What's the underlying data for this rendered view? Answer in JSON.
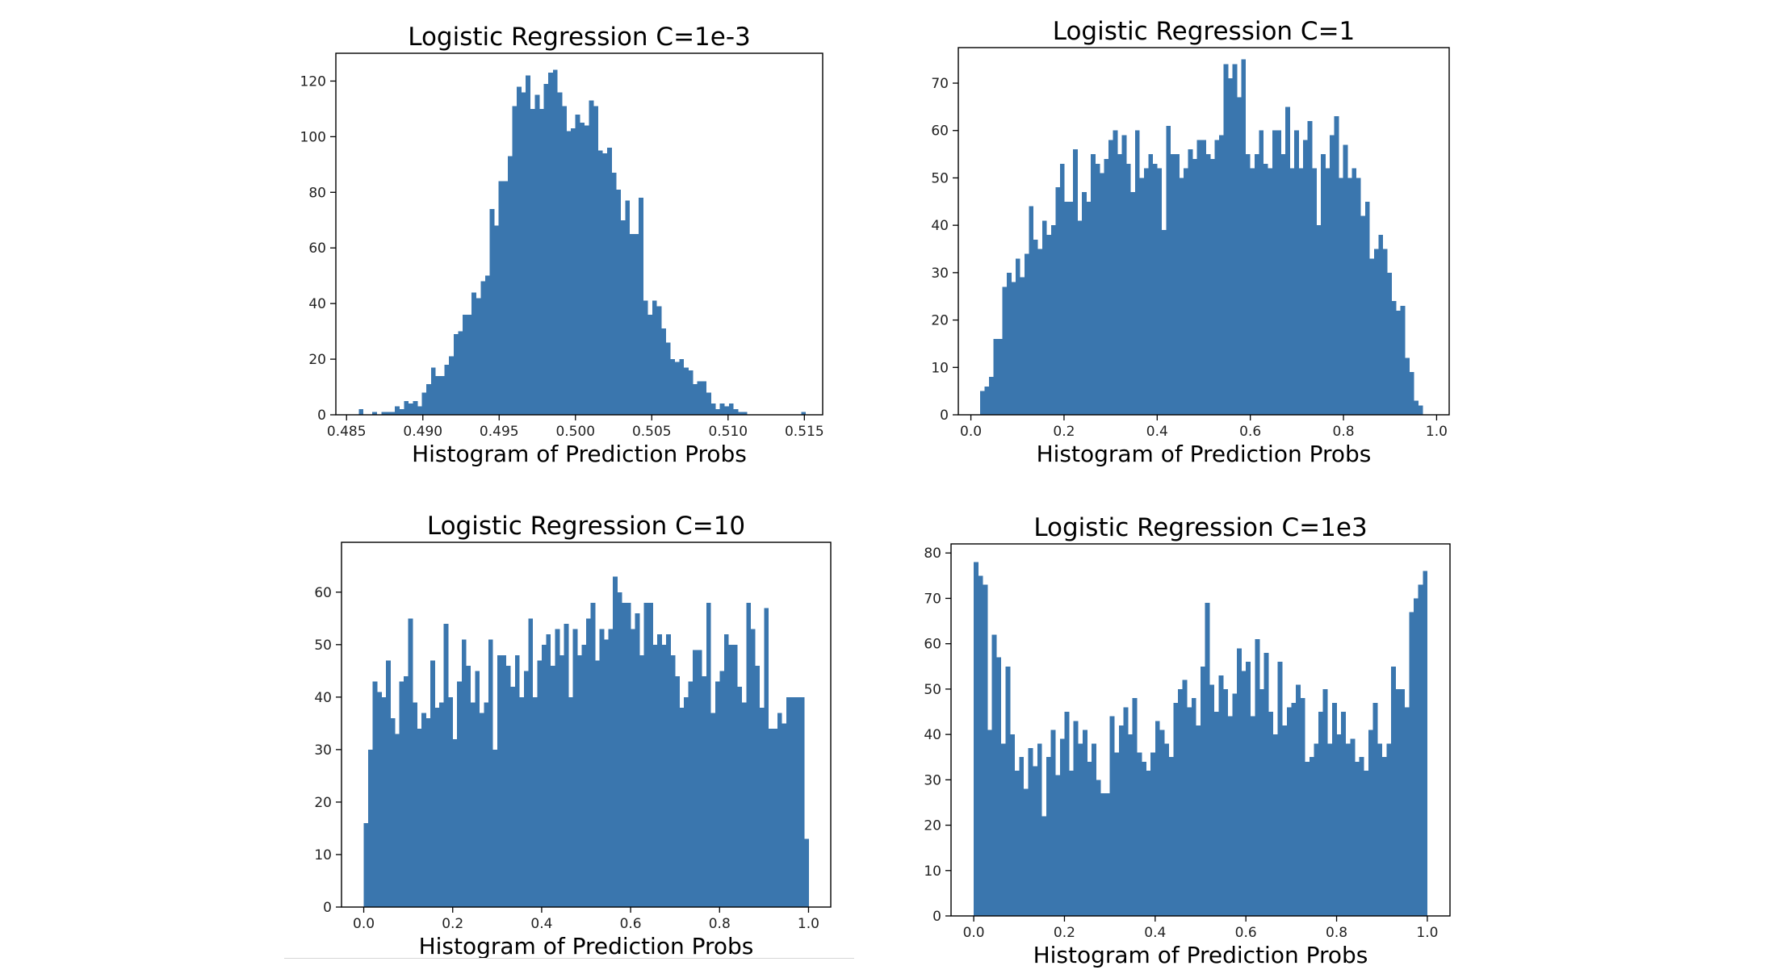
{
  "chart_data": [
    {
      "type": "bar",
      "title": "Logistic Regression C=1e-3",
      "xlabel": "Histogram of Prediction Probs",
      "ylabel": "",
      "xlim": [
        0.4843,
        0.5162
      ],
      "ylim": [
        0,
        130
      ],
      "bin_start": 0.4858,
      "bin_width": 0.0002958,
      "xticks": [
        0.485,
        0.49,
        0.495,
        0.5,
        0.505,
        0.51,
        0.515
      ],
      "xtick_labels": [
        "0.485",
        "0.490",
        "0.495",
        "0.500",
        "0.505",
        "0.510",
        "0.515"
      ],
      "yticks": [
        0,
        20,
        40,
        60,
        80,
        100,
        120
      ],
      "ytick_labels": [
        "0",
        "20",
        "40",
        "60",
        "80",
        "100",
        "120"
      ],
      "color": "#3a76ae",
      "values": [
        2,
        0,
        0,
        1,
        0,
        1,
        1,
        1,
        3,
        2,
        5,
        4,
        5,
        3,
        8,
        11,
        17,
        14,
        14,
        18,
        21,
        29,
        30,
        36,
        36,
        44,
        42,
        48,
        50,
        74,
        68,
        84,
        84,
        93,
        111,
        118,
        116,
        122,
        110,
        115,
        110,
        119,
        123,
        124,
        116,
        111,
        102,
        103,
        108,
        105,
        104,
        113,
        111,
        95,
        94,
        96,
        87,
        81,
        70,
        77,
        65,
        65,
        78,
        41,
        36,
        41,
        39,
        31,
        26,
        20,
        19,
        20,
        17,
        16,
        11,
        12,
        12,
        8,
        4,
        2,
        4,
        3,
        4,
        2,
        1,
        1,
        0,
        0,
        0,
        0,
        0,
        0,
        0,
        0,
        0,
        0,
        0,
        0,
        1,
        0
      ]
    },
    {
      "type": "bar",
      "title": "Logistic Regression C=1",
      "xlabel": "Histogram of Prediction Probs",
      "ylabel": "",
      "xlim": [
        -0.027,
        1.027
      ],
      "ylim": [
        0,
        77.5
      ],
      "bin_start": 0.02,
      "bin_width": 0.0095,
      "xticks": [
        0.0,
        0.2,
        0.4,
        0.6,
        0.8,
        1.0
      ],
      "xtick_labels": [
        "0.0",
        "0.2",
        "0.4",
        "0.6",
        "0.8",
        "1.0"
      ],
      "yticks": [
        0,
        10,
        20,
        30,
        40,
        50,
        60,
        70
      ],
      "ytick_labels": [
        "0",
        "10",
        "20",
        "30",
        "40",
        "50",
        "60",
        "70"
      ],
      "color": "#3a76ae",
      "values": [
        5,
        6,
        8,
        16,
        16,
        27,
        30,
        28,
        33,
        29,
        34,
        44,
        37,
        35,
        41,
        38,
        40,
        48,
        53,
        45,
        45,
        56,
        41,
        47,
        45,
        55,
        53,
        51,
        54,
        58,
        60,
        55,
        59,
        53,
        47,
        60,
        50,
        52,
        55,
        53,
        52,
        39,
        61,
        55,
        55,
        50,
        52,
        56,
        54,
        58,
        58,
        55,
        54,
        58,
        59,
        74,
        71,
        74,
        67,
        75,
        55,
        52,
        55,
        60,
        53,
        52,
        60,
        60,
        55,
        65,
        52,
        60,
        52,
        58,
        62,
        52,
        40,
        55,
        52,
        59,
        63,
        50,
        57,
        50,
        52,
        50,
        42,
        45,
        33,
        35,
        38,
        35,
        30,
        24,
        22,
        23,
        12,
        9,
        3,
        2
      ]
    },
    {
      "type": "bar",
      "title": "Logistic Regression C=10",
      "xlabel": "Histogram of Prediction Probs",
      "ylabel": "",
      "xlim": [
        -0.05,
        1.05
      ],
      "ylim": [
        0,
        69.5
      ],
      "bin_start": 0.0,
      "bin_width": 0.01,
      "xticks": [
        0.0,
        0.2,
        0.4,
        0.6,
        0.8,
        1.0
      ],
      "xtick_labels": [
        "0.0",
        "0.2",
        "0.4",
        "0.6",
        "0.8",
        "1.0"
      ],
      "yticks": [
        0,
        10,
        20,
        30,
        40,
        50,
        60
      ],
      "ytick_labels": [
        "0",
        "10",
        "20",
        "30",
        "40",
        "50",
        "60"
      ],
      "color": "#3a76ae",
      "values": [
        16,
        30,
        43,
        41,
        40,
        47,
        36,
        33,
        43,
        44,
        55,
        39,
        34,
        37,
        36,
        47,
        38,
        39,
        54,
        40,
        32,
        43,
        51,
        46,
        39,
        45,
        37,
        39,
        51,
        30,
        48,
        48,
        46,
        42,
        48,
        40,
        45,
        55,
        40,
        47,
        50,
        52,
        46,
        53,
        48,
        54,
        40,
        53,
        48,
        50,
        55,
        58,
        47,
        53,
        51,
        53,
        63,
        60,
        58,
        58,
        53,
        56,
        48,
        58,
        58,
        50,
        52,
        50,
        52,
        48,
        44,
        38,
        40,
        43,
        49,
        49,
        44,
        58,
        37,
        43,
        45,
        52,
        50,
        50,
        42,
        39,
        58,
        53,
        46,
        38,
        57,
        34,
        34,
        37,
        35,
        40,
        40,
        40,
        40,
        13
      ]
    },
    {
      "type": "bar",
      "title": "Logistic Regression C=1e3",
      "xlabel": "Histogram of Prediction Probs",
      "ylabel": "",
      "xlim": [
        -0.05,
        1.05
      ],
      "ylim": [
        0,
        82
      ],
      "bin_start": 0.0,
      "bin_width": 0.01,
      "xticks": [
        0.0,
        0.2,
        0.4,
        0.6,
        0.8,
        1.0
      ],
      "xtick_labels": [
        "0.0",
        "0.2",
        "0.4",
        "0.6",
        "0.8",
        "1.0"
      ],
      "yticks": [
        0,
        10,
        20,
        30,
        40,
        50,
        60,
        70,
        80
      ],
      "ytick_labels": [
        "0",
        "10",
        "20",
        "30",
        "40",
        "50",
        "60",
        "70",
        "80"
      ],
      "color": "#3a76ae",
      "values": [
        78,
        75,
        73,
        41,
        62,
        57,
        38,
        55,
        40,
        32,
        35,
        28,
        37,
        33,
        38,
        22,
        35,
        41,
        31,
        39,
        45,
        32,
        43,
        38,
        41,
        34,
        38,
        30,
        27,
        27,
        44,
        36,
        42,
        46,
        40,
        48,
        36,
        34,
        32,
        36,
        43,
        41,
        38,
        35,
        47,
        50,
        52,
        46,
        48,
        42,
        55,
        69,
        51,
        45,
        53,
        50,
        44,
        49,
        59,
        54,
        56,
        44,
        61,
        50,
        58,
        45,
        40,
        56,
        42,
        46,
        47,
        51,
        48,
        34,
        35,
        38,
        45,
        50,
        38,
        47,
        40,
        45,
        38,
        39,
        34,
        35,
        32,
        41,
        47,
        38,
        35,
        38,
        55,
        50,
        50,
        46,
        67,
        70,
        73,
        76
      ]
    }
  ]
}
